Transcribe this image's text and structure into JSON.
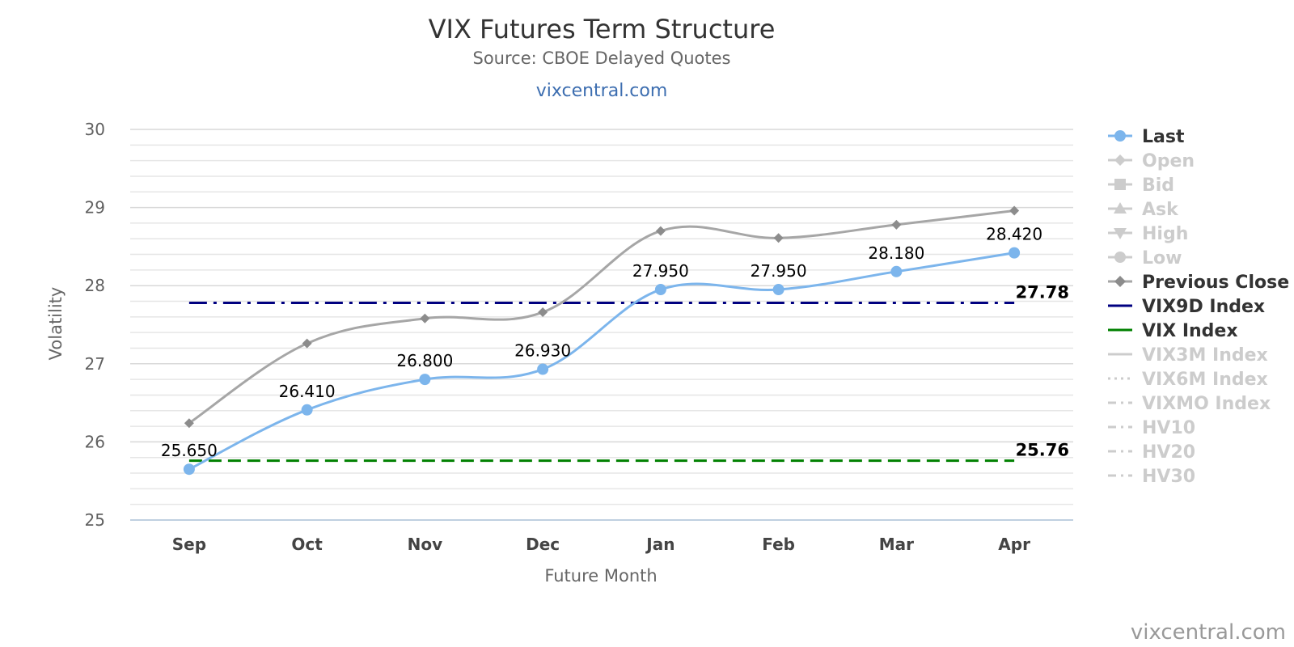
{
  "chart_data": {
    "type": "line",
    "title": "VIX Futures Term Structure",
    "subtitle": "Source: CBOE Delayed Quotes",
    "site_link": "vixcentral.com",
    "credit": "vixcentral.com",
    "xlabel": "Future Month",
    "ylabel": "Volatility",
    "categories": [
      "Sep",
      "Oct",
      "Nov",
      "Dec",
      "Jan",
      "Feb",
      "Mar",
      "Apr"
    ],
    "ylim": [
      25,
      30
    ],
    "yticks": [
      "25",
      "26",
      "27",
      "28",
      "29",
      "30"
    ],
    "grid": true,
    "legend_position": "right",
    "series": [
      {
        "name": "Last",
        "color": "#7cb5ec",
        "visible": true,
        "marker": "circle",
        "values": [
          25.65,
          26.41,
          26.8,
          26.93,
          27.95,
          27.95,
          28.18,
          28.42
        ],
        "data_labels": [
          "25.650",
          "26.410",
          "26.800",
          "26.930",
          "27.950",
          "27.950",
          "28.180",
          "28.420"
        ]
      },
      {
        "name": "Previous Close",
        "color": "#a6a6a6",
        "visible": true,
        "marker": "diamond",
        "values": [
          26.24,
          27.26,
          27.58,
          27.66,
          28.7,
          28.61,
          28.78,
          28.96
        ]
      },
      {
        "name": "VIX9D Index",
        "color": "#000080",
        "visible": true,
        "dash": "dash-dot",
        "value": 27.78,
        "label": "27.78"
      },
      {
        "name": "VIX Index",
        "color": "#008000",
        "visible": true,
        "dash": "dash",
        "value": 25.76,
        "label": "25.76"
      }
    ],
    "legend": [
      {
        "name": "Last",
        "visible": true,
        "symbol": "circle",
        "color": "#7cb5ec"
      },
      {
        "name": "Open",
        "visible": false,
        "symbol": "diamond"
      },
      {
        "name": "Bid",
        "visible": false,
        "symbol": "square"
      },
      {
        "name": "Ask",
        "visible": false,
        "symbol": "triangle"
      },
      {
        "name": "High",
        "visible": false,
        "symbol": "triangle-down"
      },
      {
        "name": "Low",
        "visible": false,
        "symbol": "circle"
      },
      {
        "name": "Previous Close",
        "visible": true,
        "symbol": "diamond",
        "color": "#a6a6a6"
      },
      {
        "name": "VIX9D Index",
        "visible": true,
        "symbol": "line",
        "color": "#000080"
      },
      {
        "name": "VIX Index",
        "visible": true,
        "symbol": "line",
        "color": "#008000"
      },
      {
        "name": "VIX3M Index",
        "visible": false,
        "symbol": "line"
      },
      {
        "name": "VIX6M Index",
        "visible": false,
        "symbol": "dotted-line"
      },
      {
        "name": "VIXMO Index",
        "visible": false,
        "symbol": "dash-dot-line"
      },
      {
        "name": "HV10",
        "visible": false,
        "symbol": "dash-dot-line"
      },
      {
        "name": "HV20",
        "visible": false,
        "symbol": "dash-dot-line"
      },
      {
        "name": "HV30",
        "visible": false,
        "symbol": "dash-dot-line"
      }
    ],
    "colors": {
      "hidden_legend": "#cccccc",
      "visible_legend_text": "#333333"
    }
  }
}
